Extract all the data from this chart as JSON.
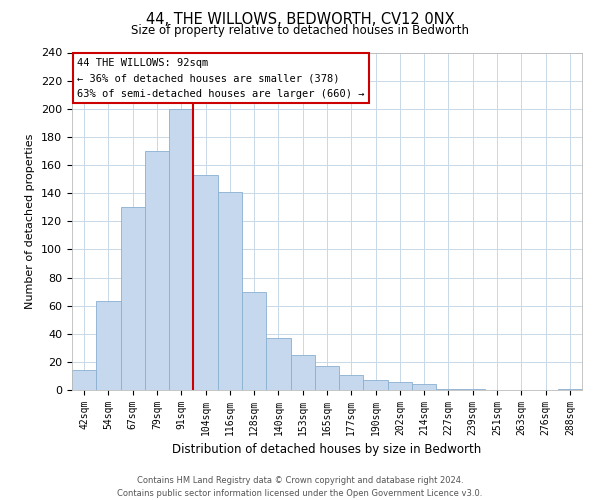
{
  "title": "44, THE WILLOWS, BEDWORTH, CV12 0NX",
  "subtitle": "Size of property relative to detached houses in Bedworth",
  "xlabel": "Distribution of detached houses by size in Bedworth",
  "ylabel": "Number of detached properties",
  "bin_labels": [
    "42sqm",
    "54sqm",
    "67sqm",
    "79sqm",
    "91sqm",
    "104sqm",
    "116sqm",
    "128sqm",
    "140sqm",
    "153sqm",
    "165sqm",
    "177sqm",
    "190sqm",
    "202sqm",
    "214sqm",
    "227sqm",
    "239sqm",
    "251sqm",
    "263sqm",
    "276sqm",
    "288sqm"
  ],
  "bar_heights": [
    14,
    63,
    130,
    170,
    200,
    153,
    141,
    70,
    37,
    25,
    17,
    11,
    7,
    6,
    4,
    1,
    1,
    0,
    0,
    0,
    1
  ],
  "bar_color": "#c5d8ed",
  "bar_edge_color": "#89afd0",
  "vline_color": "#cc0000",
  "ylim": [
    0,
    240
  ],
  "yticks": [
    0,
    20,
    40,
    60,
    80,
    100,
    120,
    140,
    160,
    180,
    200,
    220,
    240
  ],
  "annotation_title": "44 THE WILLOWS: 92sqm",
  "annotation_line1": "← 36% of detached houses are smaller (378)",
  "annotation_line2": "63% of semi-detached houses are larger (660) →",
  "annotation_box_color": "#ffffff",
  "annotation_box_edge_color": "#cc0000",
  "footer_line1": "Contains HM Land Registry data © Crown copyright and database right 2024.",
  "footer_line2": "Contains public sector information licensed under the Open Government Licence v3.0.",
  "background_color": "#ffffff",
  "grid_color": "#c8d8e8"
}
